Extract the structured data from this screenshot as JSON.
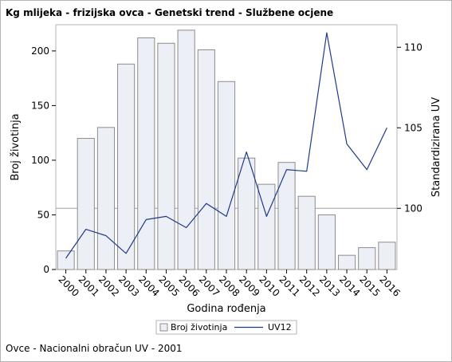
{
  "title": "Kg mlijeka - frizijska ovca - Genetski trend - Službene ocjene",
  "footnote": "Ovce - Nacionalni obračun UV - 2001",
  "colors": {
    "bar_fill": "#eceff5",
    "bar_stroke": "#8c8c8c",
    "line": "#1f3a8c",
    "reference_line": "#a0a0a0",
    "frame": "#b4b4b4"
  },
  "chart_data": {
    "type": "bar",
    "xlabel": "Godina rođenja",
    "ylabel": "Broj životinja",
    "y2label": "Standardizirana UV",
    "categories": [
      "2000",
      "2001",
      "2002",
      "2003",
      "2004",
      "2005",
      "2006",
      "2007",
      "2008",
      "2009",
      "2010",
      "2011",
      "2012",
      "2013",
      "2014",
      "2015",
      "2016"
    ],
    "series": [
      {
        "name": "Broj životinja",
        "type": "bar",
        "axis": "left",
        "values": [
          17,
          120,
          130,
          188,
          212,
          207,
          219,
          201,
          172,
          102,
          78,
          98,
          67,
          50,
          13,
          20,
          25
        ]
      },
      {
        "name": "UV12",
        "type": "line",
        "axis": "right",
        "values": [
          96.9,
          98.7,
          98.3,
          97.2,
          99.3,
          99.5,
          98.8,
          100.3,
          99.5,
          103.5,
          99.5,
          102.4,
          102.3,
          110.9,
          104.0,
          102.4,
          105.0
        ]
      }
    ],
    "ylim": [
      0,
      224
    ],
    "y_ticks": [
      0,
      50,
      100,
      150,
      200
    ],
    "y2lim": [
      96.2,
      111.4
    ],
    "y2_ticks": [
      100,
      105,
      110
    ],
    "reference_line": {
      "axis": "right",
      "value": 100
    },
    "grid": false,
    "legend": "bottom-center"
  }
}
